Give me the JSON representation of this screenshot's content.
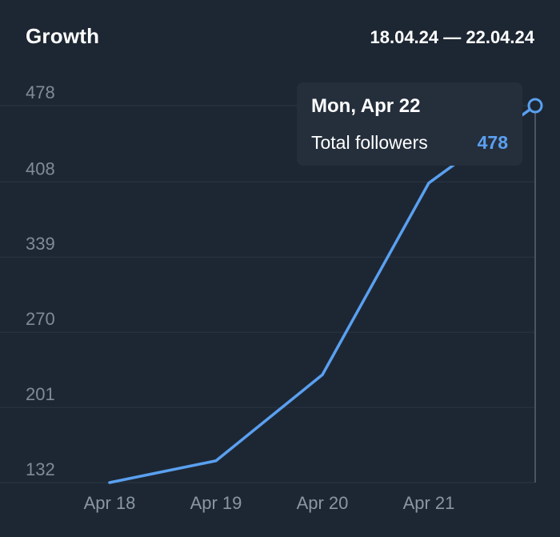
{
  "header": {
    "title": "Growth",
    "date_range": "18.04.24 — 22.04.24"
  },
  "tooltip": {
    "date": "Mon, Apr 22",
    "label": "Total followers",
    "value": "478"
  },
  "colors": {
    "background": "#1d2733",
    "line": "#5aa0f0",
    "grid": "#2c3744",
    "tick": "#7f8b98",
    "tooltip_bg": "#252f3c"
  },
  "chart_data": {
    "type": "line",
    "title": "Growth",
    "xlabel": "",
    "ylabel": "",
    "x": [
      "Apr 18",
      "Apr 19",
      "Apr 20",
      "Apr 21",
      "Apr 22"
    ],
    "x_tick_labels": [
      "Apr 18",
      "Apr 19",
      "Apr 20",
      "Apr 21"
    ],
    "y_tick_labels": [
      "132",
      "201",
      "270",
      "339",
      "408",
      "478"
    ],
    "ylim": [
      132,
      478
    ],
    "grid": true,
    "series": [
      {
        "values": [
          132,
          152,
          231,
          407,
          478
        ]
      }
    ],
    "selected_point": "Apr 22"
  }
}
